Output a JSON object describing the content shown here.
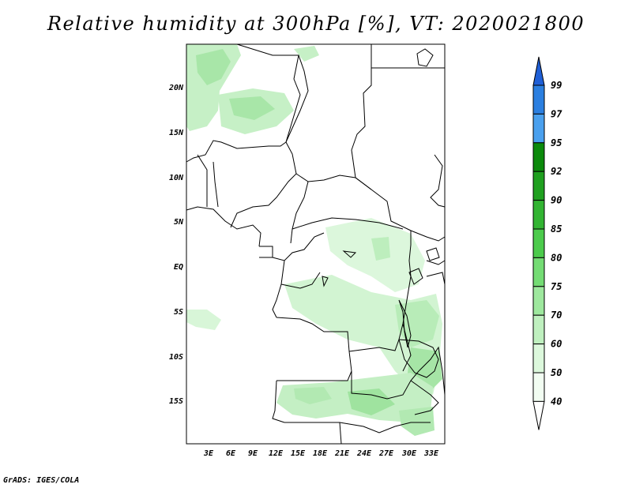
{
  "title": "Relative humidity at 300hPa [%], VT: 2020021800",
  "credit": "GrADS: IGES/COLA",
  "map": {
    "lat_labels": [
      "20N",
      "15N",
      "10N",
      "5N",
      "EQ",
      "5S",
      "10S",
      "15S"
    ],
    "lon_labels": [
      "3E",
      "6E",
      "9E",
      "12E",
      "15E",
      "18E",
      "21E",
      "24E",
      "27E",
      "30E",
      "33E"
    ]
  },
  "colorbar": {
    "labels": [
      "99",
      "97",
      "95",
      "92",
      "90",
      "85",
      "80",
      "75",
      "70",
      "60",
      "50",
      "40"
    ],
    "colors": [
      "#1f5fd6",
      "#2b7fe0",
      "#4aa0ee",
      "#0b8a0b",
      "#1fa01f",
      "#32b432",
      "#4ccb4c",
      "#74dc74",
      "#9ee89e",
      "#bff0bf",
      "#dcf8dc",
      "#f2fdf2"
    ]
  }
}
